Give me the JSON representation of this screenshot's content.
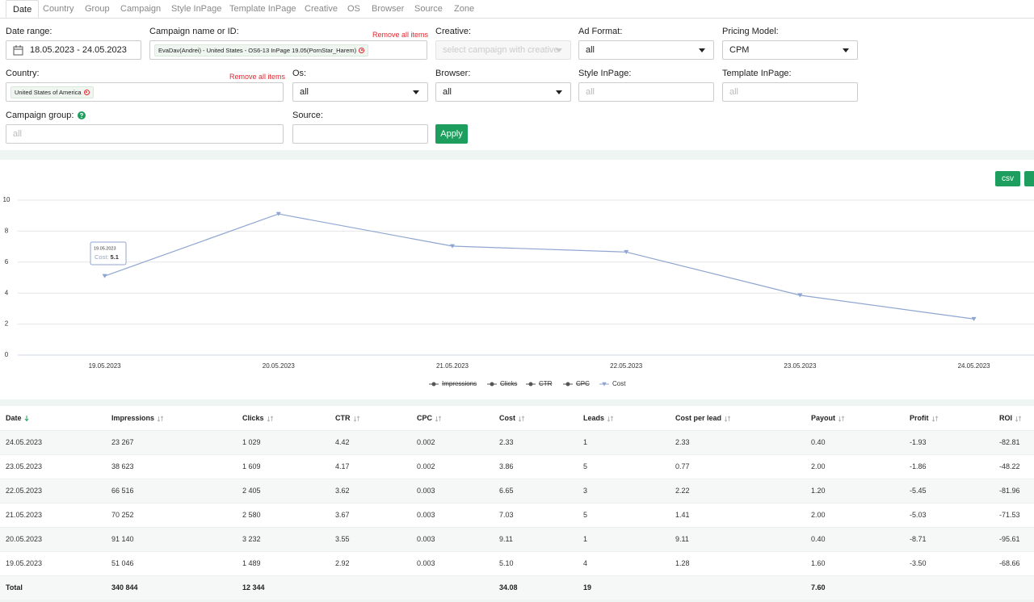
{
  "tabs": [
    "Date",
    "Country",
    "Group",
    "Campaign",
    "Style InPage",
    "Template InPage",
    "Creative",
    "OS",
    "Browser",
    "Source",
    "Zone"
  ],
  "active_tab": 0,
  "filters": {
    "date_range": {
      "label": "Date range:",
      "value": "18.05.2023 - 24.05.2023"
    },
    "campaign": {
      "label": "Campaign name or ID:",
      "tag": "EvaDav(Andrei) - United States - OS6-13 InPage 19.05(PornStar_Harem)",
      "remove": "Remove all items"
    },
    "creative": {
      "label": "Creative:",
      "placeholder": "select campaign with creative"
    },
    "ad_format": {
      "label": "Ad Format:",
      "value": "all"
    },
    "pricing_model": {
      "label": "Pricing Model:",
      "value": "CPM"
    },
    "country": {
      "label": "Country:",
      "tag": "United States of America",
      "remove": "Remove all items"
    },
    "os": {
      "label": "Os:",
      "value": "all"
    },
    "browser": {
      "label": "Browser:",
      "value": "all"
    },
    "style_inpage": {
      "label": "Style InPage:",
      "placeholder": "all"
    },
    "template_inpage": {
      "label": "Template InPage:",
      "placeholder": "all"
    },
    "campaign_group": {
      "label": "Campaign group:",
      "placeholder": "all"
    },
    "source": {
      "label": "Source:"
    },
    "apply": "Apply"
  },
  "export": "csv",
  "chart_data": {
    "type": "line",
    "categories": [
      "19.05.2023",
      "20.05.2023",
      "21.05.2023",
      "22.05.2023",
      "23.05.2023",
      "24.05.2023"
    ],
    "series": [
      {
        "name": "Cost",
        "color": "#8fa5d1",
        "values": [
          5.1,
          9.11,
          7.03,
          6.65,
          3.86,
          2.33
        ]
      }
    ],
    "legend": [
      {
        "name": "Impressions",
        "visible": false
      },
      {
        "name": "Clicks",
        "visible": false
      },
      {
        "name": "CTR",
        "visible": false
      },
      {
        "name": "CPC",
        "visible": false
      },
      {
        "name": "Cost",
        "visible": true
      }
    ],
    "ylim": [
      0,
      10
    ],
    "yticks": [
      0,
      2,
      4,
      6,
      8,
      10
    ],
    "grid": true,
    "tooltip": {
      "title": "19.05.2023",
      "label": "Cost:",
      "value": 5.1
    }
  },
  "table": {
    "columns": [
      "Date",
      "Impressions",
      "Clicks",
      "CTR",
      "CPC",
      "Cost",
      "Leads",
      "Cost per lead",
      "Payout",
      "Profit",
      "ROI"
    ],
    "sort_column": 0,
    "rows": [
      [
        "24.05.2023",
        "23 267",
        "1 029",
        "4.42",
        "0.002",
        "2.33",
        "1",
        "2.33",
        "0.40",
        "-1.93",
        "-82.81"
      ],
      [
        "23.05.2023",
        "38 623",
        "1 609",
        "4.17",
        "0.002",
        "3.86",
        "5",
        "0.77",
        "2.00",
        "-1.86",
        "-48.22"
      ],
      [
        "22.05.2023",
        "66 516",
        "2 405",
        "3.62",
        "0.003",
        "6.65",
        "3",
        "2.22",
        "1.20",
        "-5.45",
        "-81.96"
      ],
      [
        "21.05.2023",
        "70 252",
        "2 580",
        "3.67",
        "0.003",
        "7.03",
        "5",
        "1.41",
        "2.00",
        "-5.03",
        "-71.53"
      ],
      [
        "20.05.2023",
        "91 140",
        "3 232",
        "3.55",
        "0.003",
        "9.11",
        "1",
        "9.11",
        "0.40",
        "-8.71",
        "-95.61"
      ],
      [
        "19.05.2023",
        "51 046",
        "1 489",
        "2.92",
        "0.003",
        "5.10",
        "4",
        "1.28",
        "1.60",
        "-3.50",
        "-68.66"
      ]
    ],
    "total": [
      "Total",
      "340 844",
      "12 344",
      null,
      null,
      "34.08",
      "19",
      null,
      "7.60",
      null,
      null
    ]
  }
}
